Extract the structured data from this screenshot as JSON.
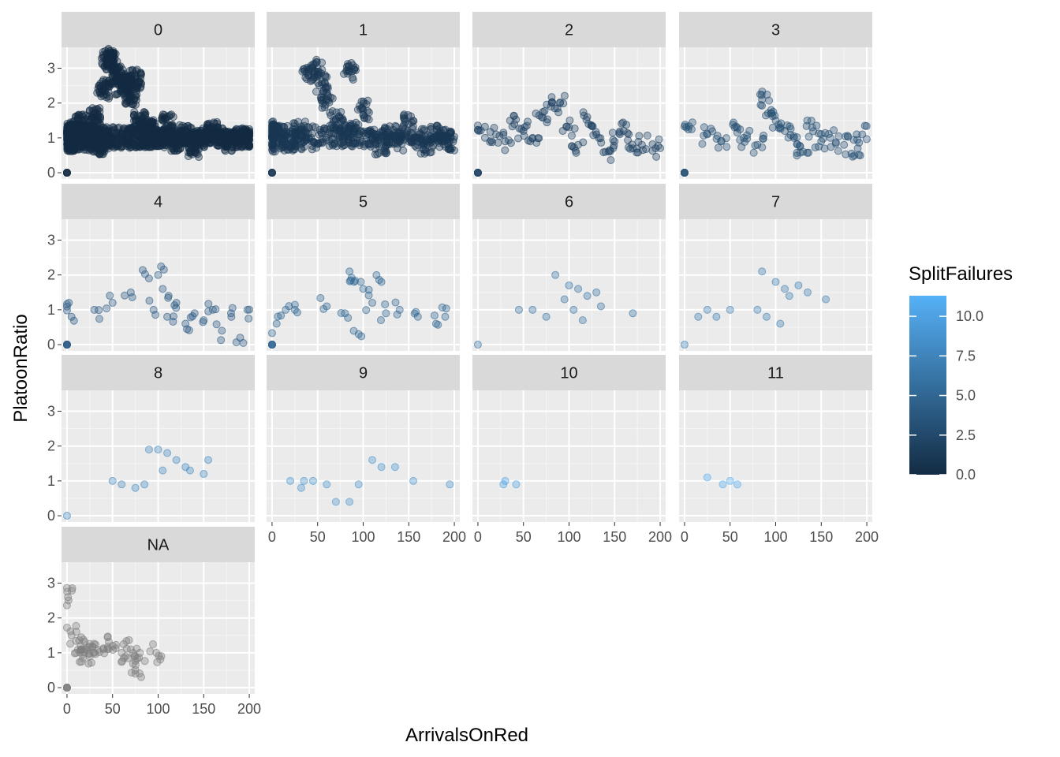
{
  "chart_data": {
    "type": "scatter",
    "xlabel": "ArrivalsOnRed",
    "ylabel": "PlatoonRatio",
    "xlim": [
      -6,
      206
    ],
    "ylim": [
      -0.18,
      3.6
    ],
    "x_ticks": [
      0,
      50,
      100,
      150,
      200
    ],
    "y_ticks": [
      0,
      1,
      2,
      3
    ],
    "grid": true,
    "legend": {
      "title": "SplitFailures",
      "position": "right",
      "type": "colorbar",
      "range": [
        0,
        11.3
      ],
      "ticks": [
        0.0,
        2.5,
        5.0,
        7.5,
        10.0
      ],
      "tick_labels": [
        "0.0",
        "2.5",
        "5.0",
        "7.5",
        "10.0"
      ],
      "color_low": "#132B43",
      "color_high": "#56B1F7",
      "na_color": "#7f7f7f"
    },
    "facets": [
      {
        "label": "0",
        "split_failures": 0,
        "density": "very high",
        "points": [
          [
            0,
            0
          ],
          [
            5,
            1.2
          ],
          [
            10,
            0.9
          ],
          [
            15,
            1.4
          ],
          [
            20,
            1.0
          ],
          [
            25,
            1.1
          ],
          [
            30,
            1.6
          ],
          [
            35,
            0.8
          ],
          [
            40,
            2.4
          ],
          [
            45,
            3.3
          ],
          [
            50,
            3.2
          ],
          [
            55,
            2.8
          ],
          [
            60,
            2.5
          ],
          [
            65,
            2.6
          ],
          [
            70,
            2.2
          ],
          [
            75,
            2.7
          ],
          [
            80,
            1.5
          ],
          [
            85,
            1.2
          ],
          [
            90,
            1.3
          ],
          [
            100,
            1.0
          ],
          [
            110,
            1.4
          ],
          [
            120,
            0.9
          ],
          [
            130,
            1.1
          ],
          [
            140,
            0.7
          ],
          [
            150,
            1.0
          ],
          [
            160,
            1.2
          ],
          [
            170,
            1.0
          ],
          [
            180,
            0.9
          ],
          [
            190,
            1.0
          ],
          [
            198,
            1.0
          ]
        ]
      },
      {
        "label": "1",
        "split_failures": 1,
        "density": "high",
        "points": [
          [
            0,
            0
          ],
          [
            1,
            1.2
          ],
          [
            10,
            1.1
          ],
          [
            20,
            1.0
          ],
          [
            30,
            1.2
          ],
          [
            40,
            2.9
          ],
          [
            50,
            3.0
          ],
          [
            55,
            2.6
          ],
          [
            60,
            2.1
          ],
          [
            70,
            1.5
          ],
          [
            80,
            1.3
          ],
          [
            85,
            2.9
          ],
          [
            90,
            1.2
          ],
          [
            100,
            1.8
          ],
          [
            110,
            1.0
          ],
          [
            120,
            0.8
          ],
          [
            130,
            1.1
          ],
          [
            140,
            0.9
          ],
          [
            150,
            1.4
          ],
          [
            160,
            1.0
          ],
          [
            170,
            0.8
          ],
          [
            180,
            1.1
          ],
          [
            190,
            1.0
          ],
          [
            195,
            0.9
          ]
        ]
      },
      {
        "label": "2",
        "split_failures": 2,
        "density": "medium",
        "points": [
          [
            0,
            0
          ],
          [
            1,
            1.2
          ],
          [
            20,
            1.1
          ],
          [
            30,
            0.9
          ],
          [
            40,
            1.4
          ],
          [
            50,
            1.2
          ],
          [
            60,
            1.0
          ],
          [
            70,
            1.6
          ],
          [
            80,
            1.9
          ],
          [
            90,
            2.0
          ],
          [
            100,
            1.3
          ],
          [
            110,
            0.8
          ],
          [
            120,
            1.6
          ],
          [
            130,
            1.1
          ],
          [
            140,
            0.6
          ],
          [
            150,
            0.9
          ],
          [
            160,
            1.2
          ],
          [
            170,
            0.7
          ],
          [
            180,
            0.8
          ],
          [
            195,
            0.7
          ]
        ]
      },
      {
        "label": "3",
        "split_failures": 3,
        "density": "medium",
        "points": [
          [
            0,
            0
          ],
          [
            2,
            1.3
          ],
          [
            25,
            1.1
          ],
          [
            40,
            0.9
          ],
          [
            55,
            1.3
          ],
          [
            65,
            1.0
          ],
          [
            80,
            0.8
          ],
          [
            85,
            2.1
          ],
          [
            95,
            1.8
          ],
          [
            100,
            1.5
          ],
          [
            110,
            1.2
          ],
          [
            120,
            1.0
          ],
          [
            130,
            0.6
          ],
          [
            140,
            1.3
          ],
          [
            150,
            0.9
          ],
          [
            160,
            1.0
          ],
          [
            175,
            0.8
          ],
          [
            190,
            0.7
          ],
          [
            195,
            1.1
          ]
        ]
      },
      {
        "label": "4",
        "split_failures": 4,
        "density": "low",
        "points": [
          [
            0,
            0
          ],
          [
            2,
            1.2
          ],
          [
            5,
            0.8
          ],
          [
            30,
            1.0
          ],
          [
            50,
            1.2
          ],
          [
            70,
            1.5
          ],
          [
            90,
            1.9
          ],
          [
            95,
            1.0
          ],
          [
            100,
            2.0
          ],
          [
            105,
            1.6
          ],
          [
            110,
            0.8
          ],
          [
            120,
            1.2
          ],
          [
            130,
            0.6
          ],
          [
            140,
            0.9
          ],
          [
            150,
            0.7
          ],
          [
            160,
            1.0
          ],
          [
            170,
            0.4
          ],
          [
            180,
            0.9
          ],
          [
            190,
            0.2
          ],
          [
            198,
            1.0
          ]
        ]
      },
      {
        "label": "5",
        "split_failures": 5,
        "density": "low",
        "points": [
          [
            0,
            0
          ],
          [
            5,
            0.6
          ],
          [
            15,
            1.0
          ],
          [
            25,
            1.0
          ],
          [
            60,
            1.1
          ],
          [
            80,
            0.9
          ],
          [
            85,
            2.1
          ],
          [
            90,
            1.8
          ],
          [
            95,
            0.3
          ],
          [
            100,
            1.6
          ],
          [
            110,
            1.2
          ],
          [
            120,
            1.8
          ],
          [
            125,
            0.9
          ],
          [
            140,
            1.0
          ],
          [
            160,
            0.8
          ],
          [
            180,
            0.6
          ],
          [
            190,
            0.8
          ]
        ]
      },
      {
        "label": "6",
        "split_failures": 6,
        "density": "sparse",
        "points": [
          [
            0,
            0
          ],
          [
            45,
            1.0
          ],
          [
            60,
            1.0
          ],
          [
            75,
            0.8
          ],
          [
            85,
            2.0
          ],
          [
            95,
            1.3
          ],
          [
            100,
            1.7
          ],
          [
            105,
            1.0
          ],
          [
            110,
            1.6
          ],
          [
            115,
            0.7
          ],
          [
            120,
            1.4
          ],
          [
            130,
            1.5
          ],
          [
            135,
            1.1
          ],
          [
            170,
            0.9
          ]
        ]
      },
      {
        "label": "7",
        "split_failures": 7,
        "density": "sparse",
        "points": [
          [
            0,
            0
          ],
          [
            15,
            0.8
          ],
          [
            25,
            1.0
          ],
          [
            35,
            0.8
          ],
          [
            50,
            1.0
          ],
          [
            80,
            1.0
          ],
          [
            85,
            2.1
          ],
          [
            90,
            0.8
          ],
          [
            100,
            1.8
          ],
          [
            105,
            0.6
          ],
          [
            110,
            1.6
          ],
          [
            115,
            1.4
          ],
          [
            125,
            1.7
          ],
          [
            135,
            1.5
          ],
          [
            155,
            1.3
          ]
        ]
      },
      {
        "label": "8",
        "split_failures": 8,
        "density": "sparse",
        "points": [
          [
            0,
            0
          ],
          [
            50,
            1.0
          ],
          [
            60,
            0.9
          ],
          [
            75,
            0.8
          ],
          [
            85,
            0.9
          ],
          [
            90,
            1.9
          ],
          [
            100,
            1.9
          ],
          [
            105,
            1.3
          ],
          [
            110,
            1.8
          ],
          [
            120,
            1.6
          ],
          [
            130,
            1.4
          ],
          [
            135,
            1.3
          ],
          [
            150,
            1.2
          ],
          [
            155,
            1.6
          ]
        ]
      },
      {
        "label": "9",
        "split_failures": 9,
        "density": "sparse",
        "points": [
          [
            20,
            1.0
          ],
          [
            32,
            0.8
          ],
          [
            35,
            1.0
          ],
          [
            45,
            1.0
          ],
          [
            60,
            0.9
          ],
          [
            70,
            0.4
          ],
          [
            85,
            0.4
          ],
          [
            95,
            0.9
          ],
          [
            110,
            1.6
          ],
          [
            120,
            1.4
          ],
          [
            135,
            1.4
          ],
          [
            155,
            1.0
          ],
          [
            195,
            0.9
          ]
        ]
      },
      {
        "label": "10",
        "split_failures": 10,
        "density": "sparse",
        "points": [
          [
            28,
            0.9
          ],
          [
            30,
            1.0
          ],
          [
            42,
            0.9
          ]
        ]
      },
      {
        "label": "11",
        "split_failures": 11,
        "density": "sparse",
        "points": [
          [
            25,
            1.1
          ],
          [
            42,
            0.9
          ],
          [
            50,
            1.0
          ],
          [
            58,
            0.9
          ]
        ]
      },
      {
        "label": "NA",
        "split_failures": null,
        "density": "medium",
        "points": [
          [
            0,
            0
          ],
          [
            1,
            2.6
          ],
          [
            5,
            1.5
          ],
          [
            10,
            1.0
          ],
          [
            15,
            1.2
          ],
          [
            20,
            1.1
          ],
          [
            25,
            0.9
          ],
          [
            30,
            1.0
          ],
          [
            40,
            1.1
          ],
          [
            50,
            1.2
          ],
          [
            60,
            1.0
          ],
          [
            70,
            1.1
          ],
          [
            75,
            0.5
          ],
          [
            80,
            1.0
          ],
          [
            98,
            1.0
          ]
        ]
      }
    ]
  }
}
